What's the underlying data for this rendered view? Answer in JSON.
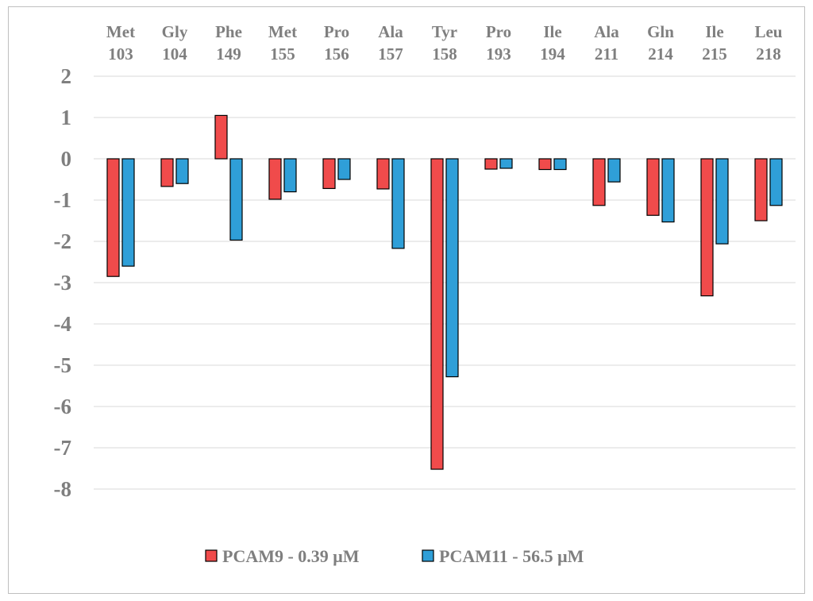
{
  "chart_data": {
    "type": "bar",
    "title": "",
    "xlabel": "",
    "ylabel": "",
    "categories": [
      {
        "residue": "Met",
        "number": "103"
      },
      {
        "residue": "Gly",
        "number": "104"
      },
      {
        "residue": "Phe",
        "number": "149"
      },
      {
        "residue": "Met",
        "number": "155"
      },
      {
        "residue": "Pro",
        "number": "156"
      },
      {
        "residue": "Ala",
        "number": "157"
      },
      {
        "residue": "Tyr",
        "number": "158"
      },
      {
        "residue": "Pro",
        "number": "193"
      },
      {
        "residue": "Ile",
        "number": "194"
      },
      {
        "residue": "Ala",
        "number": "211"
      },
      {
        "residue": "Gln",
        "number": "214"
      },
      {
        "residue": "Ile",
        "number": "215"
      },
      {
        "residue": "Leu",
        "number": "218"
      }
    ],
    "series": [
      {
        "name": "PCAM9 - 0.39 μM",
        "color": "#f04b4b",
        "values": [
          -2.85,
          -0.67,
          1.05,
          -0.98,
          -0.72,
          -0.73,
          -7.52,
          -0.25,
          -0.26,
          -1.13,
          -1.37,
          -3.32,
          -1.5
        ]
      },
      {
        "name": "PCAM11 - 56.5 μM",
        "color": "#2f9fd8",
        "values": [
          -2.6,
          -0.6,
          -1.97,
          -0.8,
          -0.5,
          -2.17,
          -5.28,
          -0.23,
          -0.26,
          -0.56,
          -1.53,
          -2.06,
          -1.13
        ]
      }
    ],
    "ylim": [
      -8,
      2
    ],
    "yticks": [
      2,
      1,
      0,
      -1,
      -2,
      -3,
      -4,
      -5,
      -6,
      -7,
      -8
    ],
    "grid": true,
    "legend": "bottom",
    "category_labels_position": "top"
  }
}
